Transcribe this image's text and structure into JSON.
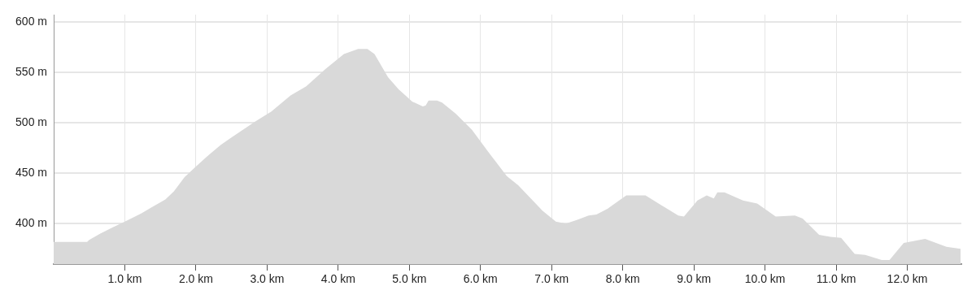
{
  "chart_data": {
    "type": "area",
    "x": [
      0,
      0.47,
      0.5,
      0.65,
      0.82,
      1.0,
      1.23,
      1.42,
      1.57,
      1.69,
      1.84,
      1.99,
      2.18,
      2.35,
      2.49,
      2.83,
      3.06,
      3.33,
      3.55,
      3.82,
      4.08,
      4.28,
      4.41,
      4.51,
      4.7,
      4.85,
      5.04,
      5.19,
      5.23,
      5.27,
      5.39,
      5.46,
      5.65,
      5.88,
      6.11,
      6.37,
      6.53,
      6.87,
      7.06,
      7.2,
      7.37,
      7.52,
      7.63,
      7.79,
      8.05,
      8.32,
      8.55,
      8.78,
      8.86,
      9.05,
      9.18,
      9.28,
      9.33,
      9.43,
      9.69,
      9.89,
      10.15,
      10.42,
      10.53,
      10.76,
      10.92,
      11.07,
      11.26,
      11.41,
      11.64,
      11.75,
      11.95,
      12.25,
      12.55,
      12.75
    ],
    "series": [
      {
        "color": "#d9d9d9",
        "values": [
          382,
          382,
          384,
          390,
          396,
          402,
          410,
          418,
          424,
          432,
          446,
          456,
          468,
          478,
          485,
          501,
          511,
          527,
          536,
          553,
          568,
          573,
          573,
          568,
          545,
          533,
          521,
          516,
          517,
          522,
          522,
          520,
          509,
          493,
          471,
          447,
          438,
          413,
          402,
          400,
          404,
          408,
          409,
          415,
          428,
          428,
          418,
          408,
          407,
          423,
          428,
          425,
          431,
          431,
          423,
          420,
          407,
          408,
          405,
          389,
          387,
          386,
          370,
          369,
          364,
          364,
          381,
          385,
          377,
          375
        ]
      }
    ],
    "xlim": [
      0,
      12.76
    ],
    "ylim": [
      360,
      607
    ],
    "xticks": [
      {
        "value": 1,
        "label": "1.0 km"
      },
      {
        "value": 2,
        "label": "2.0 km"
      },
      {
        "value": 3,
        "label": "3.0 km"
      },
      {
        "value": 4,
        "label": "4.0 km"
      },
      {
        "value": 5,
        "label": "5.0 km"
      },
      {
        "value": 6,
        "label": "6.0 km"
      },
      {
        "value": 7,
        "label": "7.0 km"
      },
      {
        "value": 8,
        "label": "8.0 km"
      },
      {
        "value": 9,
        "label": "9.0 km"
      },
      {
        "value": 10,
        "label": "10.0 km"
      },
      {
        "value": 11,
        "label": "11.0 km"
      },
      {
        "value": 12,
        "label": "12.0 km"
      }
    ],
    "yticks": [
      {
        "value": 400,
        "label": "400 m"
      },
      {
        "value": 450,
        "label": "450 m"
      },
      {
        "value": 500,
        "label": "500 m"
      },
      {
        "value": 550,
        "label": "550 m"
      },
      {
        "value": 600,
        "label": "600 m"
      }
    ],
    "grid": true
  }
}
